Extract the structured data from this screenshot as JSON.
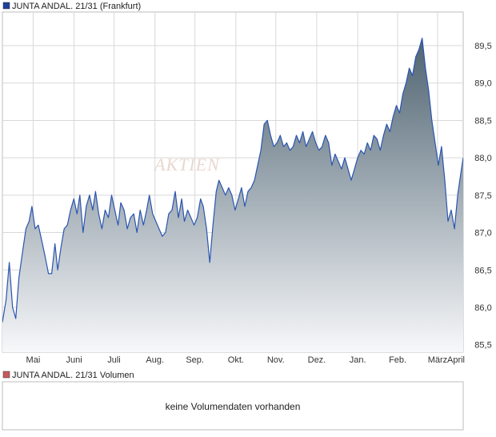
{
  "price_panel": {
    "legend_label": "JUNTA ANDAL. 21/31 (Frankfurt)",
    "legend_color": "#1f3f99"
  },
  "volume_panel": {
    "legend_label": "JUNTA ANDAL. 21/31 Volumen",
    "legend_color": "#c85a5a",
    "no_data_text": "keine Volumendaten vorhanden"
  },
  "watermark": "AKTIEN",
  "colors": {
    "line": "#2a55b0",
    "fill_top": "#4e6371",
    "fill_bottom": "#f7f8fa",
    "grid": "#d8d8d8"
  },
  "chart_data": {
    "type": "area",
    "ylim": [
      85.4,
      89.95
    ],
    "y_ticks": [
      "85,5",
      "86,0",
      "86,5",
      "87,0",
      "87,5",
      "88,0",
      "88,5",
      "89,0",
      "89,5"
    ],
    "y_tick_values": [
      85.5,
      86.0,
      86.5,
      87.0,
      87.5,
      88.0,
      88.5,
      89.0,
      89.5
    ],
    "months": [
      "Mai",
      "Juni",
      "Juli",
      "Aug.",
      "Sep.",
      "Okt.",
      "Nov.",
      "Dez.",
      "Jan.",
      "Feb.",
      "März",
      "April"
    ],
    "month_positions": [
      0.0667,
      0.1555,
      0.2422,
      0.3311,
      0.4178,
      0.5067,
      0.5933,
      0.6822,
      0.7711,
      0.8578,
      0.9444,
      1.0289
    ],
    "series": [
      {
        "points": [
          [
            0.0,
            85.8
          ],
          [
            0.008,
            86.1
          ],
          [
            0.015,
            86.6
          ],
          [
            0.022,
            86.0
          ],
          [
            0.029,
            85.85
          ],
          [
            0.036,
            86.4
          ],
          [
            0.044,
            86.75
          ],
          [
            0.051,
            87.05
          ],
          [
            0.058,
            87.15
          ],
          [
            0.064,
            87.35
          ],
          [
            0.071,
            87.05
          ],
          [
            0.078,
            87.1
          ],
          [
            0.085,
            86.9
          ],
          [
            0.092,
            86.7
          ],
          [
            0.1,
            86.45
          ],
          [
            0.107,
            86.45
          ],
          [
            0.114,
            86.85
          ],
          [
            0.12,
            86.5
          ],
          [
            0.127,
            86.8
          ],
          [
            0.134,
            87.05
          ],
          [
            0.141,
            87.1
          ],
          [
            0.148,
            87.3
          ],
          [
            0.155,
            87.45
          ],
          [
            0.162,
            87.25
          ],
          [
            0.168,
            87.5
          ],
          [
            0.175,
            87.0
          ],
          [
            0.182,
            87.35
          ],
          [
            0.189,
            87.5
          ],
          [
            0.196,
            87.3
          ],
          [
            0.202,
            87.55
          ],
          [
            0.209,
            87.25
          ],
          [
            0.216,
            87.05
          ],
          [
            0.223,
            87.3
          ],
          [
            0.23,
            87.2
          ],
          [
            0.237,
            87.5
          ],
          [
            0.244,
            87.3
          ],
          [
            0.251,
            87.1
          ],
          [
            0.257,
            87.4
          ],
          [
            0.264,
            87.3
          ],
          [
            0.271,
            87.05
          ],
          [
            0.278,
            87.2
          ],
          [
            0.285,
            87.25
          ],
          [
            0.292,
            87.0
          ],
          [
            0.299,
            87.3
          ],
          [
            0.306,
            87.1
          ],
          [
            0.313,
            87.3
          ],
          [
            0.319,
            87.5
          ],
          [
            0.326,
            87.25
          ],
          [
            0.333,
            87.15
          ],
          [
            0.34,
            87.05
          ],
          [
            0.347,
            86.95
          ],
          [
            0.354,
            87.0
          ],
          [
            0.361,
            87.25
          ],
          [
            0.368,
            87.3
          ],
          [
            0.375,
            87.55
          ],
          [
            0.382,
            87.2
          ],
          [
            0.389,
            87.45
          ],
          [
            0.395,
            87.15
          ],
          [
            0.402,
            87.3
          ],
          [
            0.409,
            87.2
          ],
          [
            0.416,
            87.1
          ],
          [
            0.423,
            87.2
          ],
          [
            0.43,
            87.45
          ],
          [
            0.436,
            87.35
          ],
          [
            0.443,
            87.05
          ],
          [
            0.45,
            86.6
          ],
          [
            0.457,
            87.1
          ],
          [
            0.464,
            87.55
          ],
          [
            0.47,
            87.7
          ],
          [
            0.477,
            87.6
          ],
          [
            0.484,
            87.5
          ],
          [
            0.491,
            87.6
          ],
          [
            0.498,
            87.5
          ],
          [
            0.505,
            87.3
          ],
          [
            0.512,
            87.45
          ],
          [
            0.519,
            87.6
          ],
          [
            0.526,
            87.35
          ],
          [
            0.533,
            87.55
          ],
          [
            0.54,
            87.6
          ],
          [
            0.547,
            87.7
          ],
          [
            0.554,
            87.9
          ],
          [
            0.561,
            88.1
          ],
          [
            0.568,
            88.45
          ],
          [
            0.575,
            88.5
          ],
          [
            0.582,
            88.3
          ],
          [
            0.589,
            88.15
          ],
          [
            0.596,
            88.2
          ],
          [
            0.603,
            88.3
          ],
          [
            0.61,
            88.15
          ],
          [
            0.617,
            88.2
          ],
          [
            0.624,
            88.1
          ],
          [
            0.631,
            88.15
          ],
          [
            0.638,
            88.3
          ],
          [
            0.645,
            88.2
          ],
          [
            0.652,
            88.35
          ],
          [
            0.659,
            88.15
          ],
          [
            0.666,
            88.25
          ],
          [
            0.673,
            88.35
          ],
          [
            0.68,
            88.2
          ],
          [
            0.687,
            88.1
          ],
          [
            0.694,
            88.15
          ],
          [
            0.701,
            88.3
          ],
          [
            0.708,
            88.2
          ],
          [
            0.715,
            87.9
          ],
          [
            0.722,
            88.05
          ],
          [
            0.729,
            87.95
          ],
          [
            0.736,
            87.85
          ],
          [
            0.743,
            88.0
          ],
          [
            0.75,
            87.85
          ],
          [
            0.757,
            87.7
          ],
          [
            0.764,
            87.85
          ],
          [
            0.771,
            88.0
          ],
          [
            0.778,
            88.1
          ],
          [
            0.785,
            88.05
          ],
          [
            0.792,
            88.2
          ],
          [
            0.799,
            88.1
          ],
          [
            0.806,
            88.3
          ],
          [
            0.813,
            88.25
          ],
          [
            0.82,
            88.1
          ],
          [
            0.827,
            88.3
          ],
          [
            0.834,
            88.45
          ],
          [
            0.841,
            88.35
          ],
          [
            0.848,
            88.55
          ],
          [
            0.855,
            88.7
          ],
          [
            0.862,
            88.6
          ],
          [
            0.869,
            88.85
          ],
          [
            0.876,
            89.0
          ],
          [
            0.883,
            89.2
          ],
          [
            0.89,
            89.1
          ],
          [
            0.897,
            89.35
          ],
          [
            0.904,
            89.45
          ],
          [
            0.911,
            89.6
          ],
          [
            0.918,
            89.2
          ],
          [
            0.925,
            88.9
          ],
          [
            0.932,
            88.5
          ],
          [
            0.939,
            88.2
          ],
          [
            0.946,
            87.9
          ],
          [
            0.953,
            88.15
          ],
          [
            0.96,
            87.7
          ],
          [
            0.967,
            87.15
          ],
          [
            0.974,
            87.3
          ],
          [
            0.981,
            87.05
          ],
          [
            0.988,
            87.5
          ],
          [
            0.995,
            87.8
          ],
          [
            1.0,
            88.0
          ]
        ]
      }
    ]
  }
}
